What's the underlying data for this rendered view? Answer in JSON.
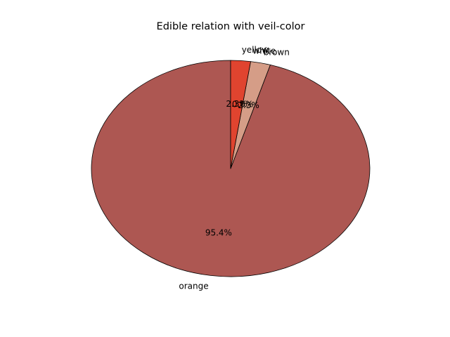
{
  "chart_data": {
    "type": "pie",
    "title": "Edible relation with veil-color",
    "categories": [
      "orange",
      "brown",
      "white",
      "yellow"
    ],
    "values": [
      95.4,
      2.3,
      0.0,
      2.3
    ],
    "value_labels": [
      "95.4%",
      "2.3%",
      "0.0%",
      "2.3%"
    ],
    "colors": [
      "#ad5752",
      "#d59d87",
      "#dc7f58",
      "#e0442f"
    ],
    "start_angle_deg": 90,
    "direction": "counterclockwise",
    "edge_color": "#000000",
    "legend": "none"
  }
}
